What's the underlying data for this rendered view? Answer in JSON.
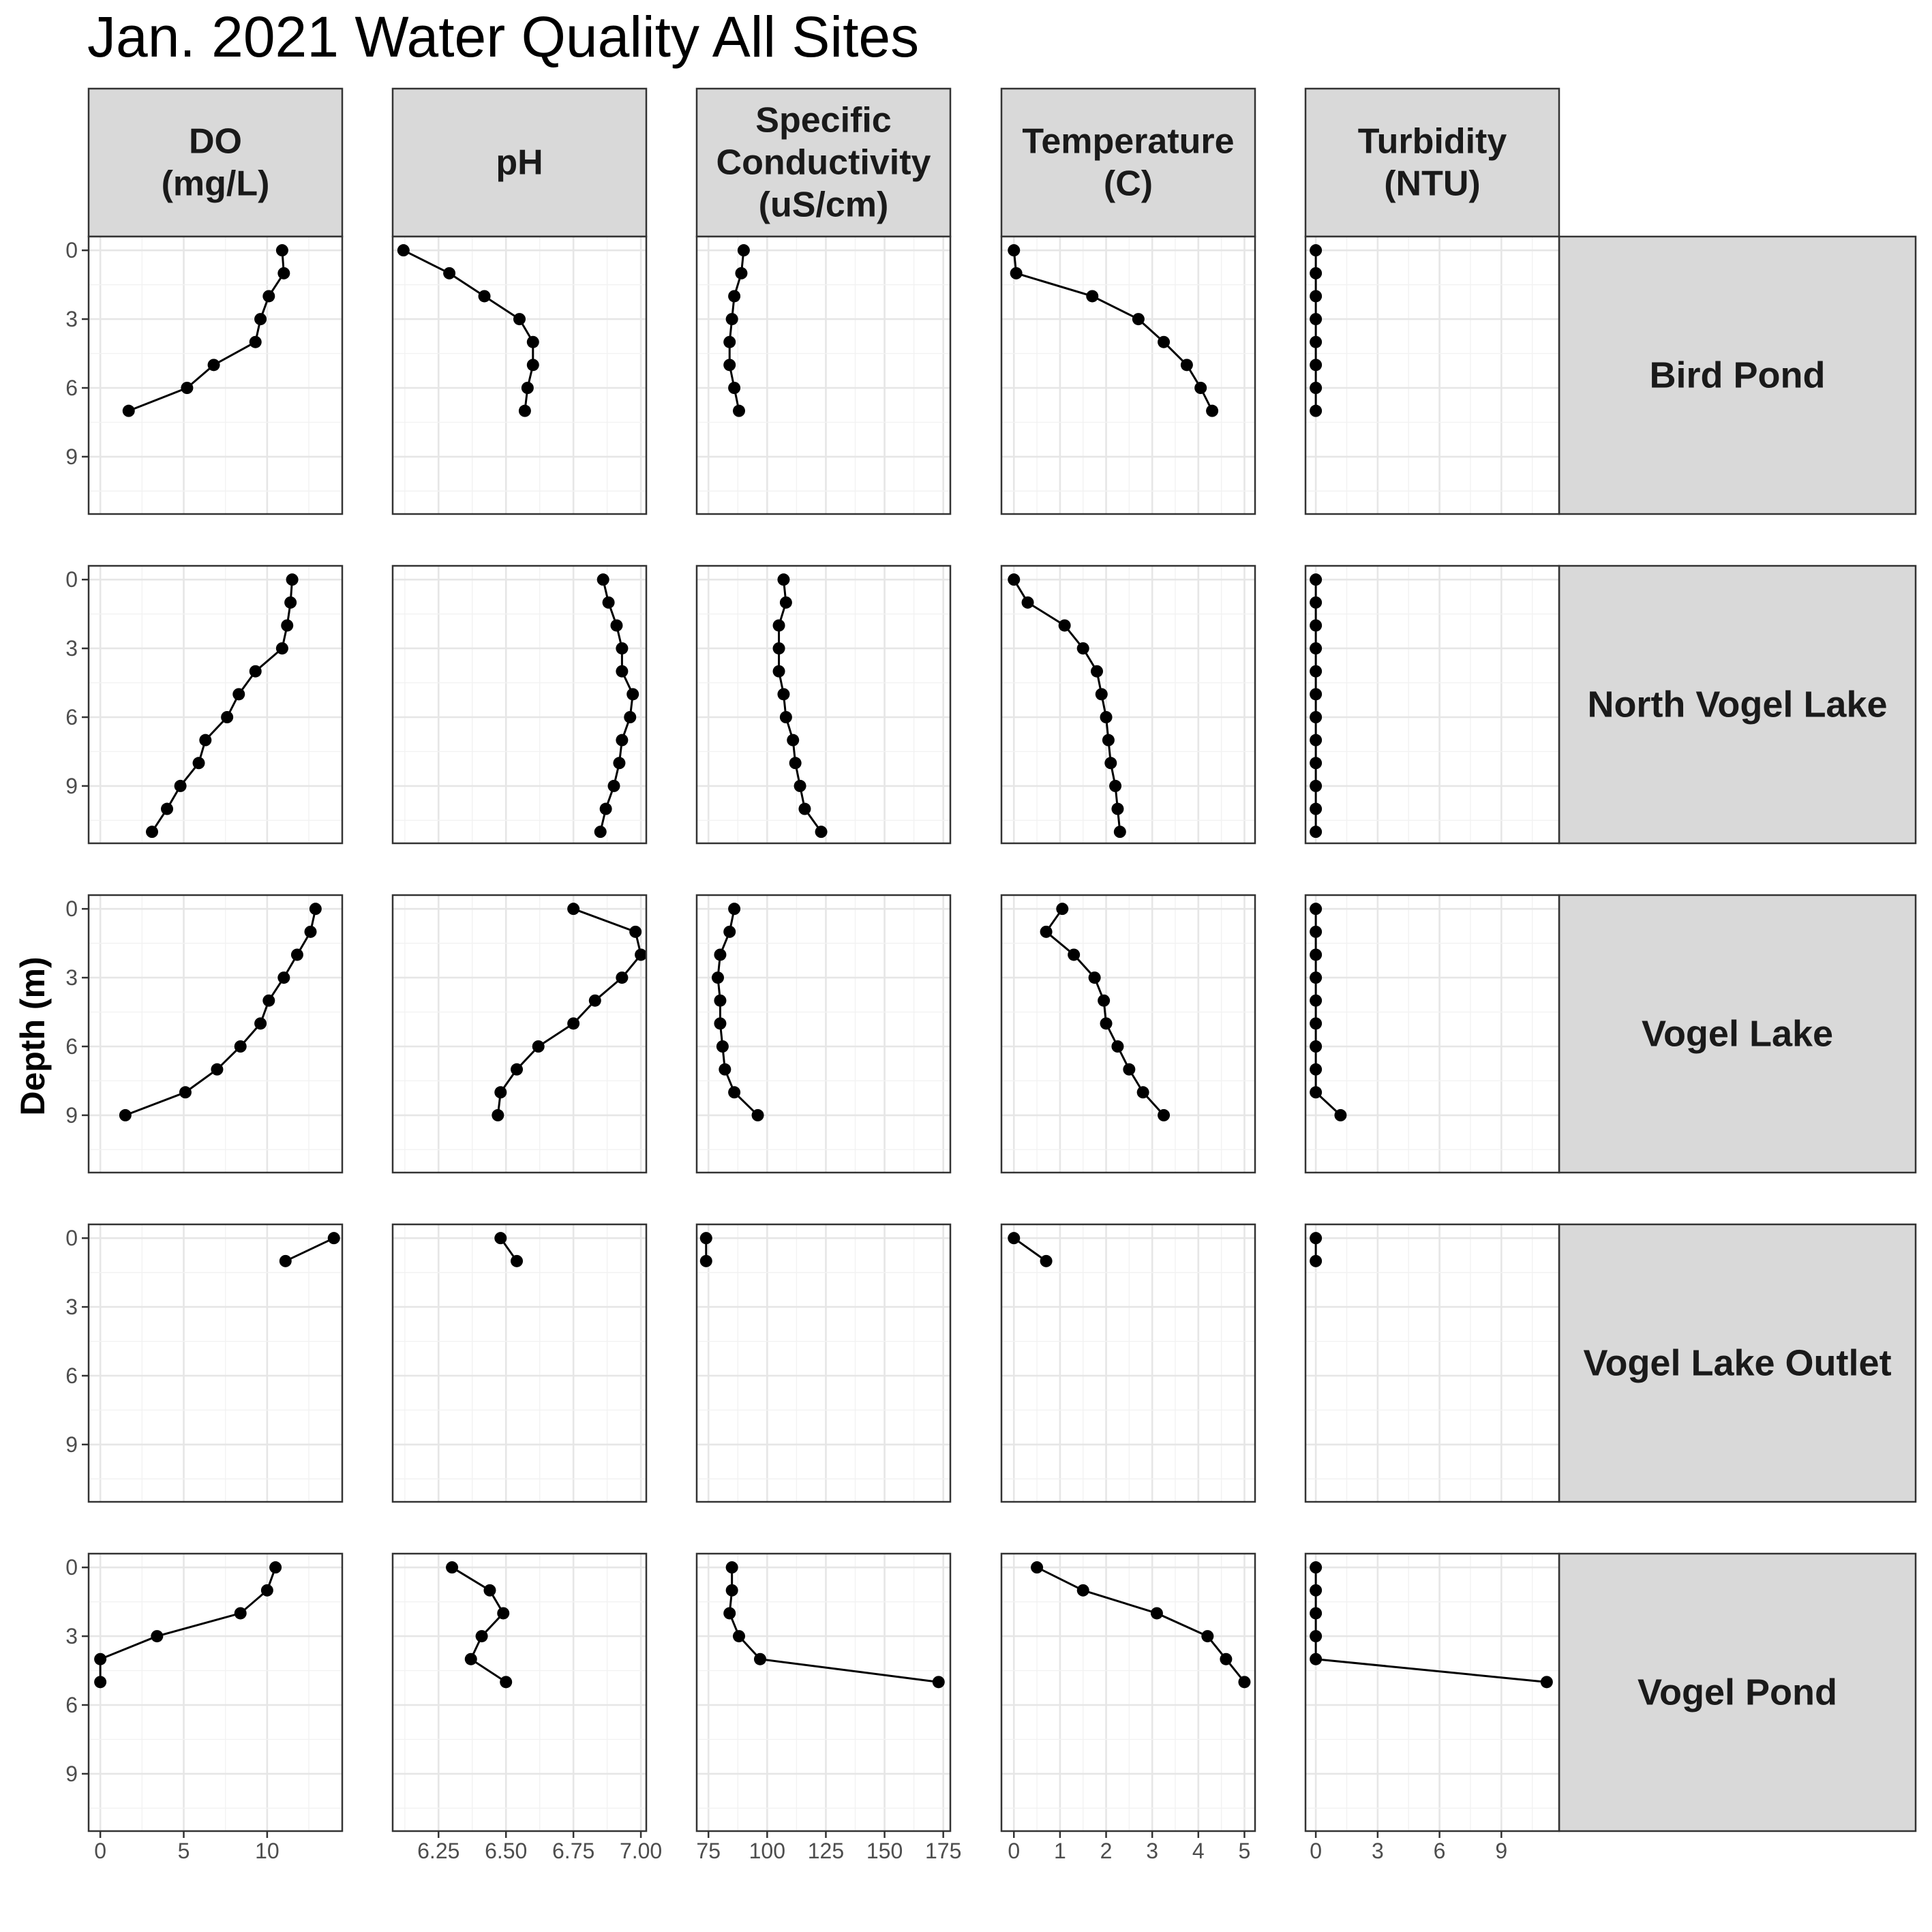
{
  "chart_data": {
    "type": "line",
    "title": "Jan. 2021 Water Quality All Sites",
    "ylabel": "Depth (m)",
    "y_reversed": true,
    "ylim": [
      11.5,
      -0.6
    ],
    "y_ticks": [
      0,
      3,
      6,
      9
    ],
    "grid": true,
    "columns": [
      {
        "key": "do",
        "label": [
          "DO",
          "(mg/L)"
        ],
        "xlim": [
          -0.7,
          14.5
        ],
        "ticks": [
          0,
          5,
          10
        ],
        "tick_labels": [
          "0",
          "5",
          "10"
        ]
      },
      {
        "key": "ph",
        "label": [
          "pH"
        ],
        "xlim": [
          6.08,
          7.02
        ],
        "ticks": [
          6.25,
          6.5,
          6.75,
          7.0
        ],
        "tick_labels": [
          "6.25",
          "6.50",
          "6.75",
          "7.00"
        ]
      },
      {
        "key": "sc",
        "label": [
          "Specific",
          "Conductivity",
          "(uS/cm)"
        ],
        "xlim": [
          70,
          178
        ],
        "ticks": [
          75,
          100,
          125,
          150,
          175
        ],
        "tick_labels": [
          "75",
          "100",
          "125",
          "150",
          "175"
        ]
      },
      {
        "key": "temp",
        "label": [
          "Temperature",
          "(C)"
        ],
        "xlim": [
          -0.27,
          5.23
        ],
        "ticks": [
          0,
          1,
          2,
          3,
          4,
          5
        ],
        "tick_labels": [
          "0",
          "1",
          "2",
          "3",
          "4",
          "5"
        ]
      },
      {
        "key": "turb",
        "label": [
          "Turbidity",
          "(NTU)"
        ],
        "xlim": [
          -0.5,
          11.8
        ],
        "ticks": [
          0,
          3,
          6,
          9
        ],
        "tick_labels": [
          "0",
          "3",
          "6",
          "9"
        ]
      }
    ],
    "sites": [
      {
        "name": "Bird Pond",
        "depth": [
          0,
          1,
          2,
          3,
          4,
          5,
          6,
          7
        ],
        "do": [
          10.9,
          11.0,
          10.1,
          9.6,
          9.3,
          6.8,
          5.2,
          1.7
        ],
        "ph": [
          6.12,
          6.29,
          6.42,
          6.55,
          6.6,
          6.6,
          6.58,
          6.57
        ],
        "sc": [
          90,
          89,
          86,
          85,
          84,
          84,
          86,
          88
        ],
        "temp": [
          0.0,
          0.05,
          1.7,
          2.7,
          3.25,
          3.75,
          4.05,
          4.3
        ],
        "turb": [
          0,
          0,
          0,
          0,
          0,
          0,
          0,
          0
        ]
      },
      {
        "name": "North Vogel Lake",
        "depth": [
          0,
          1,
          2,
          3,
          4,
          5,
          6,
          7,
          8,
          9,
          10,
          11
        ],
        "do": [
          11.5,
          11.4,
          11.2,
          10.9,
          9.3,
          8.3,
          7.6,
          6.3,
          5.9,
          4.8,
          4.0,
          3.1
        ],
        "ph": [
          6.86,
          6.88,
          6.91,
          6.93,
          6.93,
          6.97,
          6.96,
          6.93,
          6.92,
          6.9,
          6.87,
          6.85
        ],
        "sc": [
          107,
          108,
          105,
          105,
          105,
          107,
          108,
          111,
          112,
          114,
          116,
          123
        ],
        "temp": [
          0.0,
          0.3,
          1.1,
          1.5,
          1.8,
          1.9,
          2.0,
          2.05,
          2.1,
          2.2,
          2.25,
          2.3
        ],
        "turb": [
          0,
          0,
          0,
          0,
          0,
          0,
          0,
          0,
          0,
          0,
          0,
          0
        ]
      },
      {
        "name": "Vogel Lake",
        "depth": [
          0,
          1,
          2,
          3,
          4,
          5,
          6,
          7,
          8,
          9
        ],
        "do": [
          12.9,
          12.6,
          11.8,
          11.0,
          10.1,
          9.6,
          8.4,
          7.0,
          5.1,
          1.5
        ],
        "ph": [
          6.75,
          6.98,
          7.0,
          6.93,
          6.83,
          6.75,
          6.62,
          6.54,
          6.48,
          6.47
        ],
        "sc": [
          86,
          84,
          80,
          79,
          80,
          80,
          81,
          82,
          86,
          96
        ],
        "temp": [
          1.05,
          0.7,
          1.3,
          1.75,
          1.95,
          2.0,
          2.25,
          2.5,
          2.8,
          3.25
        ],
        "turb": [
          0,
          0,
          0,
          0,
          0,
          0,
          0,
          0,
          0,
          1.2
        ]
      },
      {
        "name": "Vogel Lake Outlet",
        "depth": [
          0,
          1
        ],
        "do": [
          14.0,
          11.1
        ],
        "ph": [
          6.48,
          6.54
        ],
        "sc": [
          74,
          74
        ],
        "temp": [
          0.0,
          0.7
        ],
        "turb": [
          0,
          0
        ]
      },
      {
        "name": "Vogel Pond",
        "depth": [
          0,
          1,
          2,
          3,
          4,
          5
        ],
        "do": [
          10.5,
          10.0,
          8.4,
          3.4,
          0.0,
          0.0
        ],
        "ph": [
          6.3,
          6.44,
          6.49,
          6.41,
          6.37,
          6.5
        ],
        "sc": [
          85,
          85,
          84,
          88,
          97,
          173
        ],
        "temp": [
          0.5,
          1.5,
          3.1,
          4.2,
          4.6,
          5.0
        ],
        "turb": [
          0,
          0,
          0,
          0,
          0,
          11.2
        ]
      }
    ]
  }
}
